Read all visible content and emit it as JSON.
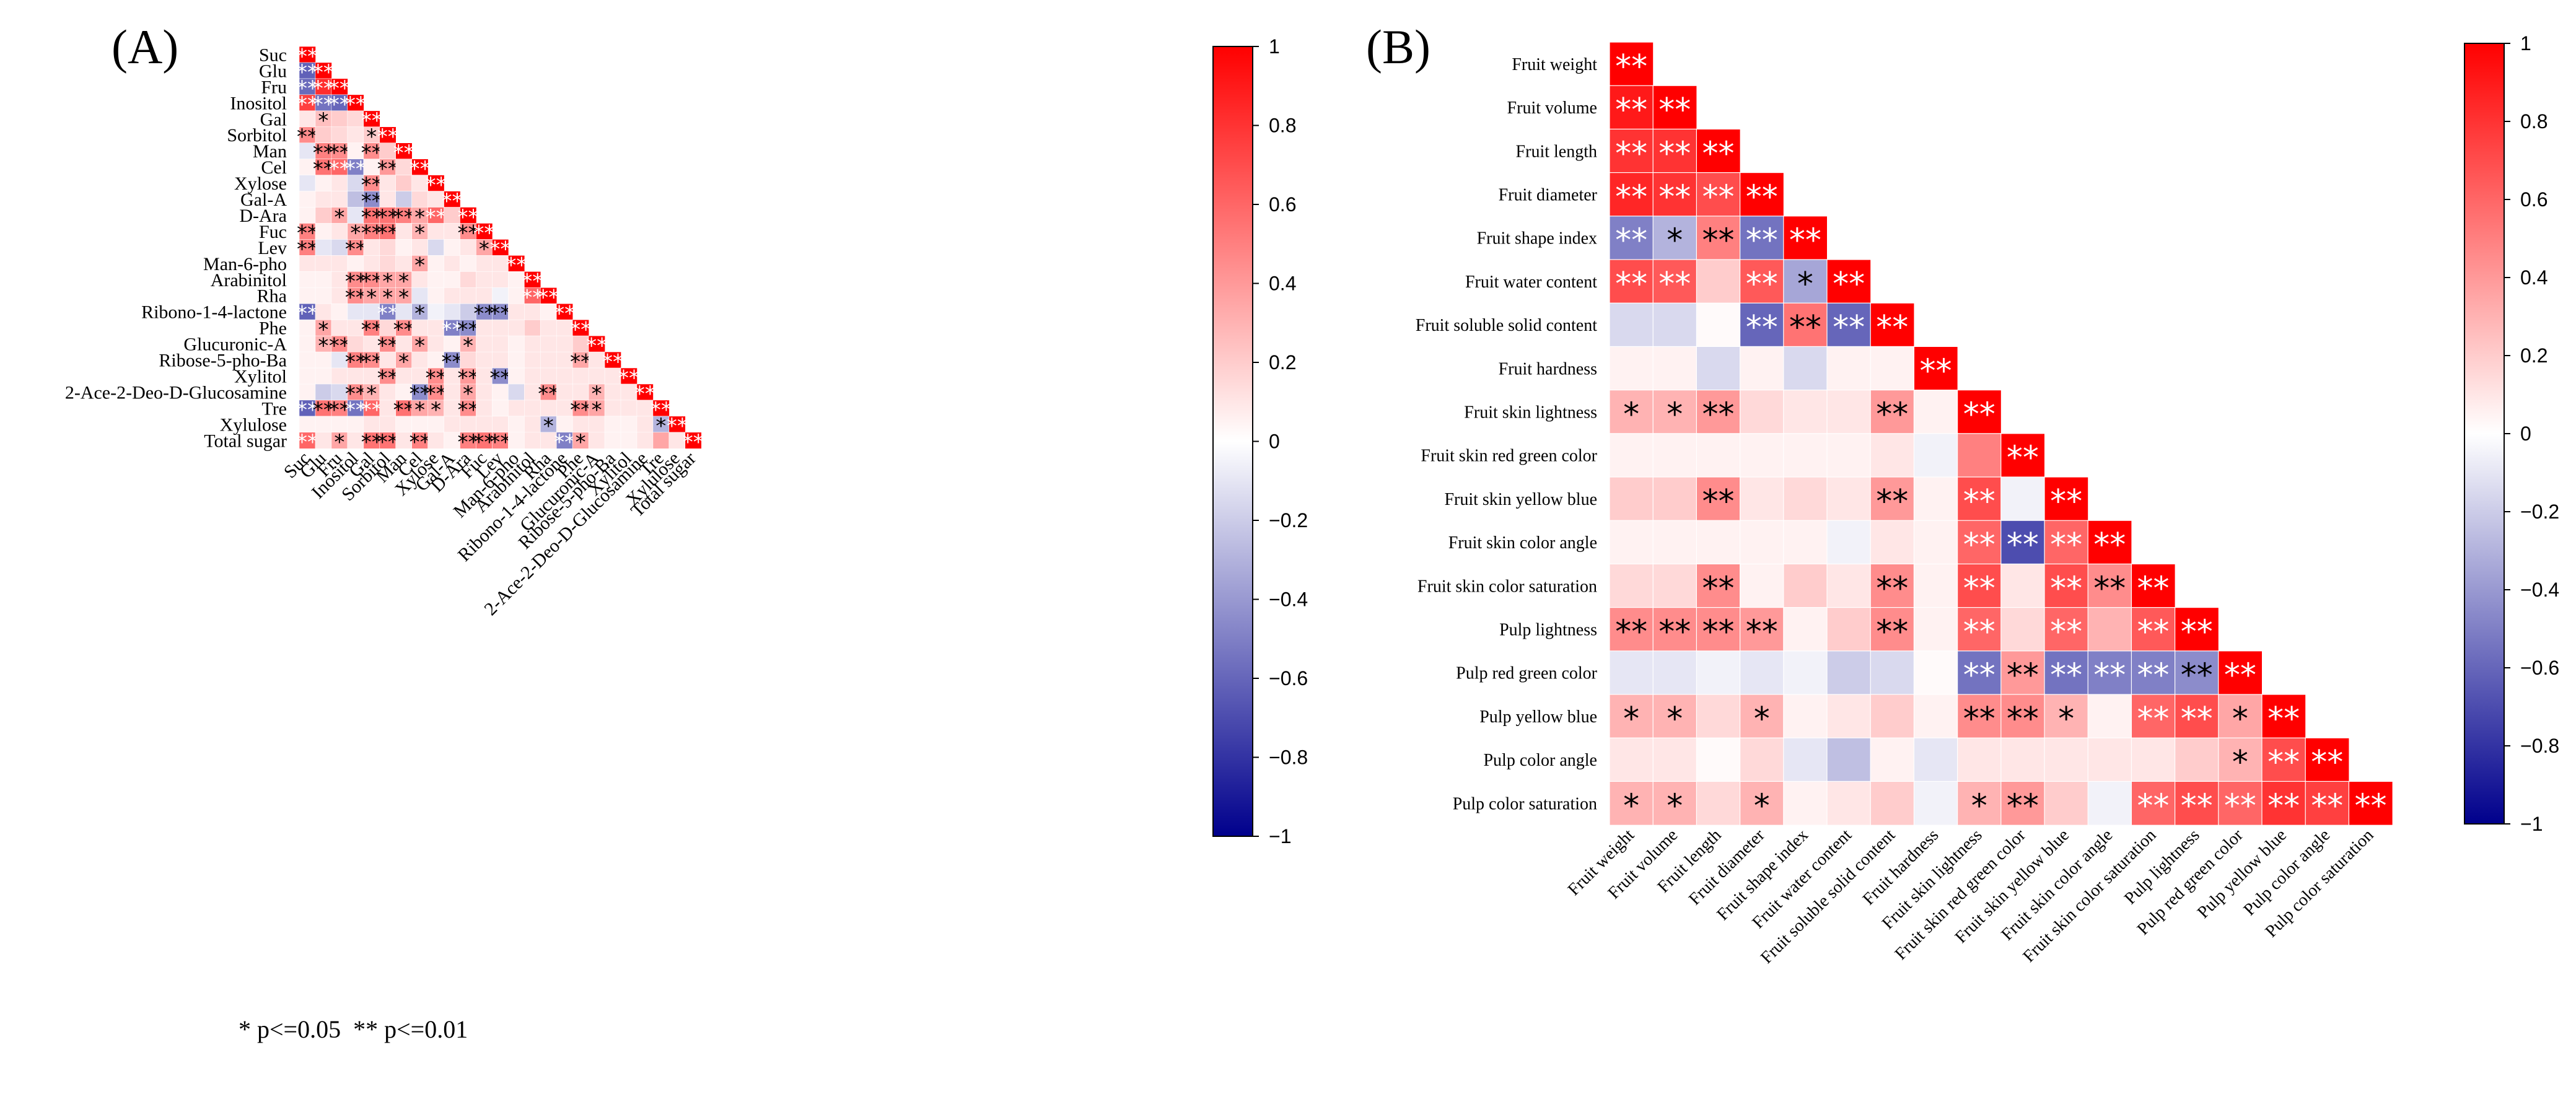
{
  "chart_data": [
    {
      "type": "heatmap",
      "panel_label": "(A)",
      "title": "",
      "variables": [
        "Suc",
        "Glu",
        "Fru",
        "Inositol",
        "Gal",
        "Sorbitol",
        "Man",
        "Cel",
        "Xylose",
        "Gal-A",
        "D-Ara",
        "Fuc",
        "Lev",
        "Man-6-pho",
        "Arabinitol",
        "Rha",
        "Ribono-1-4-lactone",
        "Phe",
        "Glucuronic-A",
        "Ribose-5-pho-Ba",
        "Xylitol",
        "2-Ace-2-Deo-D-Glucosamine",
        "Tre",
        "Xylulose",
        "Total sugar"
      ],
      "value_range": [
        -1,
        1
      ],
      "colorbar_ticks": [
        "1",
        "0.8",
        "0.6",
        "0.4",
        "0.2",
        "0",
        "−0.2",
        "−0.4",
        "−0.6",
        "−0.8",
        "−1"
      ],
      "legend_note": "* p<=0.05  ** p<=0.01",
      "correlations": [
        [
          1
        ],
        [
          -0.62,
          1
        ],
        [
          -0.58,
          0.82,
          1
        ],
        [
          0.75,
          -0.55,
          -0.6,
          1
        ],
        [
          0.1,
          0.25,
          0.2,
          0.15,
          1
        ],
        [
          0.45,
          0.2,
          0.15,
          0.1,
          0.2,
          1
        ],
        [
          -0.1,
          0.5,
          0.45,
          0.05,
          0.45,
          0.2,
          1
        ],
        [
          0.05,
          0.55,
          0.6,
          -0.5,
          0.05,
          0.4,
          0.15,
          1
        ],
        [
          -0.1,
          0.05,
          0.1,
          -0.15,
          0.45,
          0.1,
          0.2,
          0.1,
          1
        ],
        [
          0.05,
          0.1,
          0.1,
          -0.25,
          -0.45,
          0.1,
          -0.2,
          0.15,
          0.1,
          1
        ],
        [
          0.05,
          0.2,
          0.35,
          -0.1,
          0.55,
          0.55,
          0.5,
          0.35,
          0.6,
          0.2,
          1
        ],
        [
          0.5,
          0.05,
          0.1,
          0.35,
          0.5,
          0.55,
          0.1,
          0.3,
          0.1,
          0.1,
          0.45,
          1
        ],
        [
          0.5,
          -0.1,
          -0.15,
          0.45,
          0.1,
          0.15,
          0.05,
          0.1,
          -0.15,
          0.05,
          0.1,
          0.35,
          1
        ],
        [
          0.1,
          0.1,
          0.1,
          0.05,
          0.1,
          0.15,
          0.1,
          0.35,
          0.05,
          0.1,
          0.05,
          0.1,
          0.1,
          1
        ],
        [
          0.05,
          0.05,
          0.1,
          0.45,
          0.45,
          0.35,
          0.35,
          0.1,
          0.05,
          0.05,
          0.15,
          0.1,
          0.1,
          0.05,
          1
        ],
        [
          0.05,
          0.05,
          0.1,
          0.45,
          0.35,
          0.35,
          0.35,
          -0.1,
          0.05,
          0.1,
          0.1,
          0.1,
          -0.05,
          0.05,
          0.6,
          1
        ],
        [
          -0.62,
          0.1,
          0.05,
          -0.1,
          -0.1,
          -0.5,
          -0.1,
          -0.3,
          -0.05,
          -0.1,
          -0.2,
          -0.45,
          -0.45,
          0.1,
          0.1,
          0.05,
          1
        ],
        [
          0.05,
          0.35,
          0.1,
          0.1,
          0.5,
          0.15,
          0.45,
          0.1,
          0.1,
          -0.5,
          -0.45,
          0.1,
          0.1,
          0.1,
          0.2,
          0.1,
          0.1,
          1
        ],
        [
          0.05,
          0.3,
          0.45,
          0.15,
          0.1,
          0.45,
          0.1,
          0.35,
          0.1,
          0.05,
          0.3,
          0.1,
          0.1,
          0.05,
          0.1,
          0.1,
          0.1,
          0.2,
          1
        ],
        [
          0.05,
          0.05,
          -0.1,
          0.5,
          0.45,
          0.1,
          0.35,
          0.1,
          0.05,
          -0.45,
          0.15,
          0.1,
          0.1,
          0.05,
          0.1,
          0.1,
          0.1,
          0.35,
          0.1,
          1
        ],
        [
          0.05,
          0.05,
          0.1,
          0.1,
          0.1,
          0.45,
          0.1,
          0.1,
          0.45,
          0.1,
          0.4,
          0.1,
          -0.45,
          0.05,
          0.1,
          0.1,
          0.1,
          0.1,
          0.1,
          0.1,
          1
        ],
        [
          0.05,
          -0.2,
          -0.15,
          0.45,
          0.3,
          0.1,
          0.05,
          -0.45,
          0.45,
          0.1,
          0.35,
          0.1,
          0.05,
          -0.15,
          0.1,
          0.45,
          0.1,
          0.1,
          0.3,
          0.1,
          0.1,
          1
        ],
        [
          -0.62,
          0.55,
          0.5,
          -0.55,
          0.6,
          0.1,
          0.55,
          0.35,
          0.3,
          0.1,
          0.45,
          0.1,
          0.05,
          0.1,
          0.1,
          0.1,
          0.1,
          0.45,
          0.35,
          0.1,
          0.1,
          0.1,
          1
        ],
        [
          0.05,
          0.05,
          0.05,
          0.05,
          0.1,
          0.1,
          0.05,
          0.05,
          0.05,
          0.1,
          0.1,
          0.1,
          0.1,
          0.05,
          0.1,
          -0.3,
          0.05,
          0.1,
          0.1,
          0.05,
          0.05,
          0.1,
          -0.3,
          1
        ],
        [
          0.6,
          0.1,
          0.35,
          0.1,
          0.55,
          0.55,
          0.1,
          0.5,
          0.1,
          0.05,
          0.5,
          0.55,
          0.5,
          0.05,
          0.1,
          0.1,
          -0.5,
          0.35,
          0.1,
          0.05,
          0.05,
          0.1,
          0.35,
          0.1,
          1
        ]
      ],
      "significance": [
        [
          "**"
        ],
        [
          "**",
          "**"
        ],
        [
          "**",
          "**",
          "**"
        ],
        [
          "**",
          "**",
          "**",
          "**"
        ],
        [
          "",
          "*",
          "",
          "",
          "**"
        ],
        [
          "**",
          "",
          "",
          "",
          "*",
          "**"
        ],
        [
          "",
          "**",
          "**",
          "",
          "**",
          "",
          "**"
        ],
        [
          "",
          "**",
          "**",
          "**",
          "",
          "**",
          "",
          "**"
        ],
        [
          "",
          "",
          "",
          "",
          "**",
          "",
          "",
          "",
          "**"
        ],
        [
          "",
          "",
          "",
          "",
          "**",
          "",
          "",
          "",
          "",
          "**"
        ],
        [
          "",
          "",
          "*",
          "",
          "**",
          "**",
          "**",
          "*",
          "**",
          "",
          "**"
        ],
        [
          "**",
          "",
          "",
          "*",
          "**",
          "**",
          "",
          "*",
          "",
          "",
          "**",
          "**"
        ],
        [
          "**",
          "",
          "",
          "**",
          "",
          "",
          "",
          "",
          "",
          "",
          "",
          "*",
          "**"
        ],
        [
          "",
          "",
          "",
          "",
          "",
          "",
          "",
          "*",
          "",
          "",
          "",
          "",
          "",
          "**"
        ],
        [
          "",
          "",
          "",
          "**",
          "**",
          "*",
          "*",
          "",
          "",
          "",
          "",
          "",
          "",
          "",
          "**"
        ],
        [
          "",
          "",
          "",
          "**",
          "*",
          "*",
          "*",
          "",
          "",
          "",
          "",
          "",
          "",
          "",
          "**",
          "**"
        ],
        [
          "**",
          "",
          "",
          "",
          "",
          "**",
          "",
          "*",
          "",
          "",
          "",
          "**",
          "**",
          "",
          "",
          "",
          "**"
        ],
        [
          "",
          "*",
          "",
          "",
          "**",
          "",
          "**",
          "",
          "",
          "**",
          "**",
          "",
          "",
          "",
          "",
          "",
          "",
          "**"
        ],
        [
          "",
          "*",
          "**",
          "",
          "",
          "**",
          "",
          "*",
          "",
          "",
          "*",
          "",
          "",
          "",
          "",
          "",
          "",
          "",
          "**"
        ],
        [
          "",
          "",
          "",
          "**",
          "**",
          "",
          "*",
          "",
          "",
          "**",
          "",
          "",
          "",
          "",
          "",
          "",
          "",
          "**",
          "",
          "**"
        ],
        [
          "",
          "",
          "",
          "",
          "",
          "**",
          "",
          "",
          "**",
          "",
          "**",
          "",
          "**",
          "",
          "",
          "",
          "",
          "",
          "",
          "",
          "**"
        ],
        [
          "",
          "",
          "",
          "**",
          "*",
          "",
          "",
          "**",
          "**",
          "",
          "*",
          "",
          "",
          "",
          "",
          "**",
          "",
          "",
          "*",
          "",
          "",
          "**"
        ],
        [
          "**",
          "**",
          "**",
          "**",
          "**",
          "",
          "**",
          "*",
          "*",
          "",
          "**",
          "",
          "",
          "",
          "",
          "",
          "",
          "**",
          "*",
          "",
          "",
          "",
          "**"
        ],
        [
          "",
          "",
          "",
          "",
          "",
          "",
          "",
          "",
          "",
          "",
          "",
          "",
          "",
          "",
          "",
          "*",
          "",
          "",
          "",
          "",
          "",
          "",
          "*",
          "**"
        ],
        [
          "**",
          "",
          "*",
          "",
          "**",
          "**",
          "",
          "**",
          "",
          "",
          "**",
          "**",
          "**",
          "",
          "",
          "",
          "**",
          "*",
          "",
          "",
          "",
          "",
          "",
          "",
          "**"
        ]
      ]
    },
    {
      "type": "heatmap",
      "panel_label": "(B)",
      "title": "",
      "variables": [
        "Fruit weight",
        "Fruit volume",
        "Fruit length",
        "Fruit diameter",
        "Fruit shape index",
        "Fruit water content",
        "Fruit soluble solid content",
        "Fruit hardness",
        "Fruit skin lightness",
        "Fruit skin red green color",
        "Fruit skin yellow blue",
        "Fruit skin color angle",
        "Fruit skin color saturation",
        "Pulp lightness",
        "Pulp red green color",
        "Pulp yellow blue",
        "Pulp color angle",
        "Pulp color saturation"
      ],
      "value_range": [
        -1,
        1
      ],
      "colorbar_ticks": [
        "1",
        "0.8",
        "0.6",
        "0.4",
        "0.2",
        "0",
        "−0.2",
        "−0.4",
        "−0.6",
        "−0.8",
        "−1"
      ],
      "correlations": [
        [
          1
        ],
        [
          0.9,
          1
        ],
        [
          0.8,
          0.8,
          1
        ],
        [
          0.85,
          0.8,
          0.7,
          1
        ],
        [
          -0.5,
          -0.3,
          0.5,
          -0.55,
          1
        ],
        [
          0.7,
          0.65,
          0.2,
          0.65,
          -0.35,
          1
        ],
        [
          -0.15,
          -0.15,
          0.02,
          -0.6,
          0.55,
          -0.6,
          1
        ],
        [
          0.05,
          0.05,
          -0.15,
          0.05,
          -0.15,
          0.05,
          0.05,
          1
        ],
        [
          0.3,
          0.3,
          0.4,
          0.15,
          0.1,
          0.1,
          0.4,
          0.05,
          1
        ],
        [
          0.05,
          0.05,
          0.05,
          0.05,
          0.05,
          0.05,
          0.1,
          -0.05,
          0.5,
          1
        ],
        [
          0.2,
          0.2,
          0.45,
          0.1,
          0.15,
          0.1,
          0.4,
          0.05,
          0.7,
          -0.05,
          1
        ],
        [
          0.05,
          0.05,
          0.05,
          0.05,
          0.05,
          -0.05,
          0.1,
          0.05,
          0.6,
          -0.7,
          0.6,
          1
        ],
        [
          0.15,
          0.15,
          0.45,
          0.05,
          0.2,
          0.1,
          0.45,
          0.05,
          0.7,
          0.1,
          0.7,
          0.45,
          1
        ],
        [
          0.45,
          0.45,
          0.45,
          0.4,
          0.05,
          0.2,
          0.45,
          0.05,
          0.6,
          0.15,
          0.6,
          0.3,
          0.65,
          1
        ],
        [
          -0.1,
          -0.1,
          -0.05,
          -0.1,
          -0.05,
          -0.2,
          -0.15,
          0.02,
          -0.55,
          0.4,
          -0.55,
          -0.5,
          -0.5,
          -0.45,
          1
        ],
        [
          0.3,
          0.3,
          0.15,
          0.3,
          0.05,
          0.1,
          0.2,
          0.05,
          0.45,
          0.45,
          0.3,
          0.05,
          0.6,
          0.7,
          0.35,
          1
        ],
        [
          0.1,
          0.1,
          0.02,
          0.15,
          -0.1,
          -0.25,
          0.05,
          -0.1,
          0.1,
          0.1,
          0.1,
          0.1,
          0.1,
          0.2,
          0.3,
          0.7,
          1
        ],
        [
          0.3,
          0.3,
          0.15,
          0.3,
          0.05,
          0.1,
          0.2,
          -0.05,
          0.3,
          0.4,
          0.2,
          -0.05,
          0.6,
          0.7,
          0.6,
          0.8,
          0.75,
          1
        ]
      ],
      "significance": [
        [
          "**"
        ],
        [
          "**",
          "**"
        ],
        [
          "**",
          "**",
          "**"
        ],
        [
          "**",
          "**",
          "**",
          "**"
        ],
        [
          "**",
          "*",
          "**",
          "**",
          "**"
        ],
        [
          "**",
          "**",
          "",
          "**",
          "*",
          "**"
        ],
        [
          "",
          "",
          "",
          "**",
          "**",
          "**",
          "**"
        ],
        [
          "",
          "",
          "",
          "",
          "",
          "",
          "",
          "**"
        ],
        [
          "*",
          "*",
          "**",
          "",
          "",
          "",
          "**",
          "",
          "**"
        ],
        [
          "",
          "",
          "",
          "",
          "",
          "",
          "",
          "",
          "",
          "**"
        ],
        [
          "",
          "",
          "**",
          "",
          "",
          "",
          "**",
          "",
          "**",
          "",
          "**"
        ],
        [
          "",
          "",
          "",
          "",
          "",
          "",
          "",
          "",
          "**",
          "**",
          "**",
          "**"
        ],
        [
          "",
          "",
          "**",
          "",
          "",
          "",
          "**",
          "",
          "**",
          "",
          "**",
          "**",
          "**"
        ],
        [
          "**",
          "**",
          "**",
          "**",
          "",
          "",
          "**",
          "",
          "**",
          "",
          "**",
          "",
          "**",
          "**"
        ],
        [
          "",
          "",
          "",
          "",
          "",
          "",
          "",
          "",
          "**",
          "**",
          "**",
          "**",
          "**",
          "**",
          "**"
        ],
        [
          "*",
          "*",
          "",
          "*",
          "",
          "",
          "",
          "",
          "**",
          "**",
          "*",
          "",
          "**",
          "**",
          "*",
          "**"
        ],
        [
          "",
          "",
          "",
          "",
          "",
          "",
          "",
          "",
          "",
          "",
          "",
          "",
          "",
          "",
          "*",
          "**",
          "**"
        ],
        [
          "*",
          "*",
          "",
          "*",
          "",
          "",
          "",
          "",
          "*",
          "**",
          "",
          "",
          "**",
          "**",
          "**",
          "**",
          "**",
          "**"
        ]
      ]
    }
  ]
}
